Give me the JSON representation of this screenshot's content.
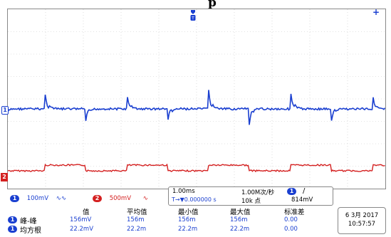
{
  "header": {
    "title": "p"
  },
  "channels": {
    "ch1": {
      "number": "1",
      "scale": "100mV",
      "coupling_icon": "ac-wave-icon",
      "color": "#1a3fd0"
    },
    "ch2": {
      "number": "2",
      "scale": "500mV",
      "coupling_icon": "dc-wave-icon",
      "color": "#d42020"
    }
  },
  "timebase": {
    "time_div": "1.00ms",
    "sample_rate": "1.00M次/秒",
    "trigger_channel": "1",
    "trigger_slope": "/",
    "delay_label": "T→▼0.000000 s",
    "record_length": "10k 点",
    "trigger_level": "814mV"
  },
  "measurements": {
    "headers": [
      "值",
      "平均值",
      "最小值",
      "最大值",
      "标准差"
    ],
    "rows": [
      {
        "channel": "1",
        "name": "峰-峰",
        "values": [
          "156mV",
          "156m",
          "156m",
          "156m",
          "0.00"
        ]
      },
      {
        "channel": "1",
        "name": "均方根",
        "values": [
          "22.2mV",
          "22.2m",
          "22.2m",
          "22.2m",
          "0.00"
        ]
      }
    ]
  },
  "datetime": {
    "date": "6 3月 2017",
    "time": "10:57:57"
  }
}
